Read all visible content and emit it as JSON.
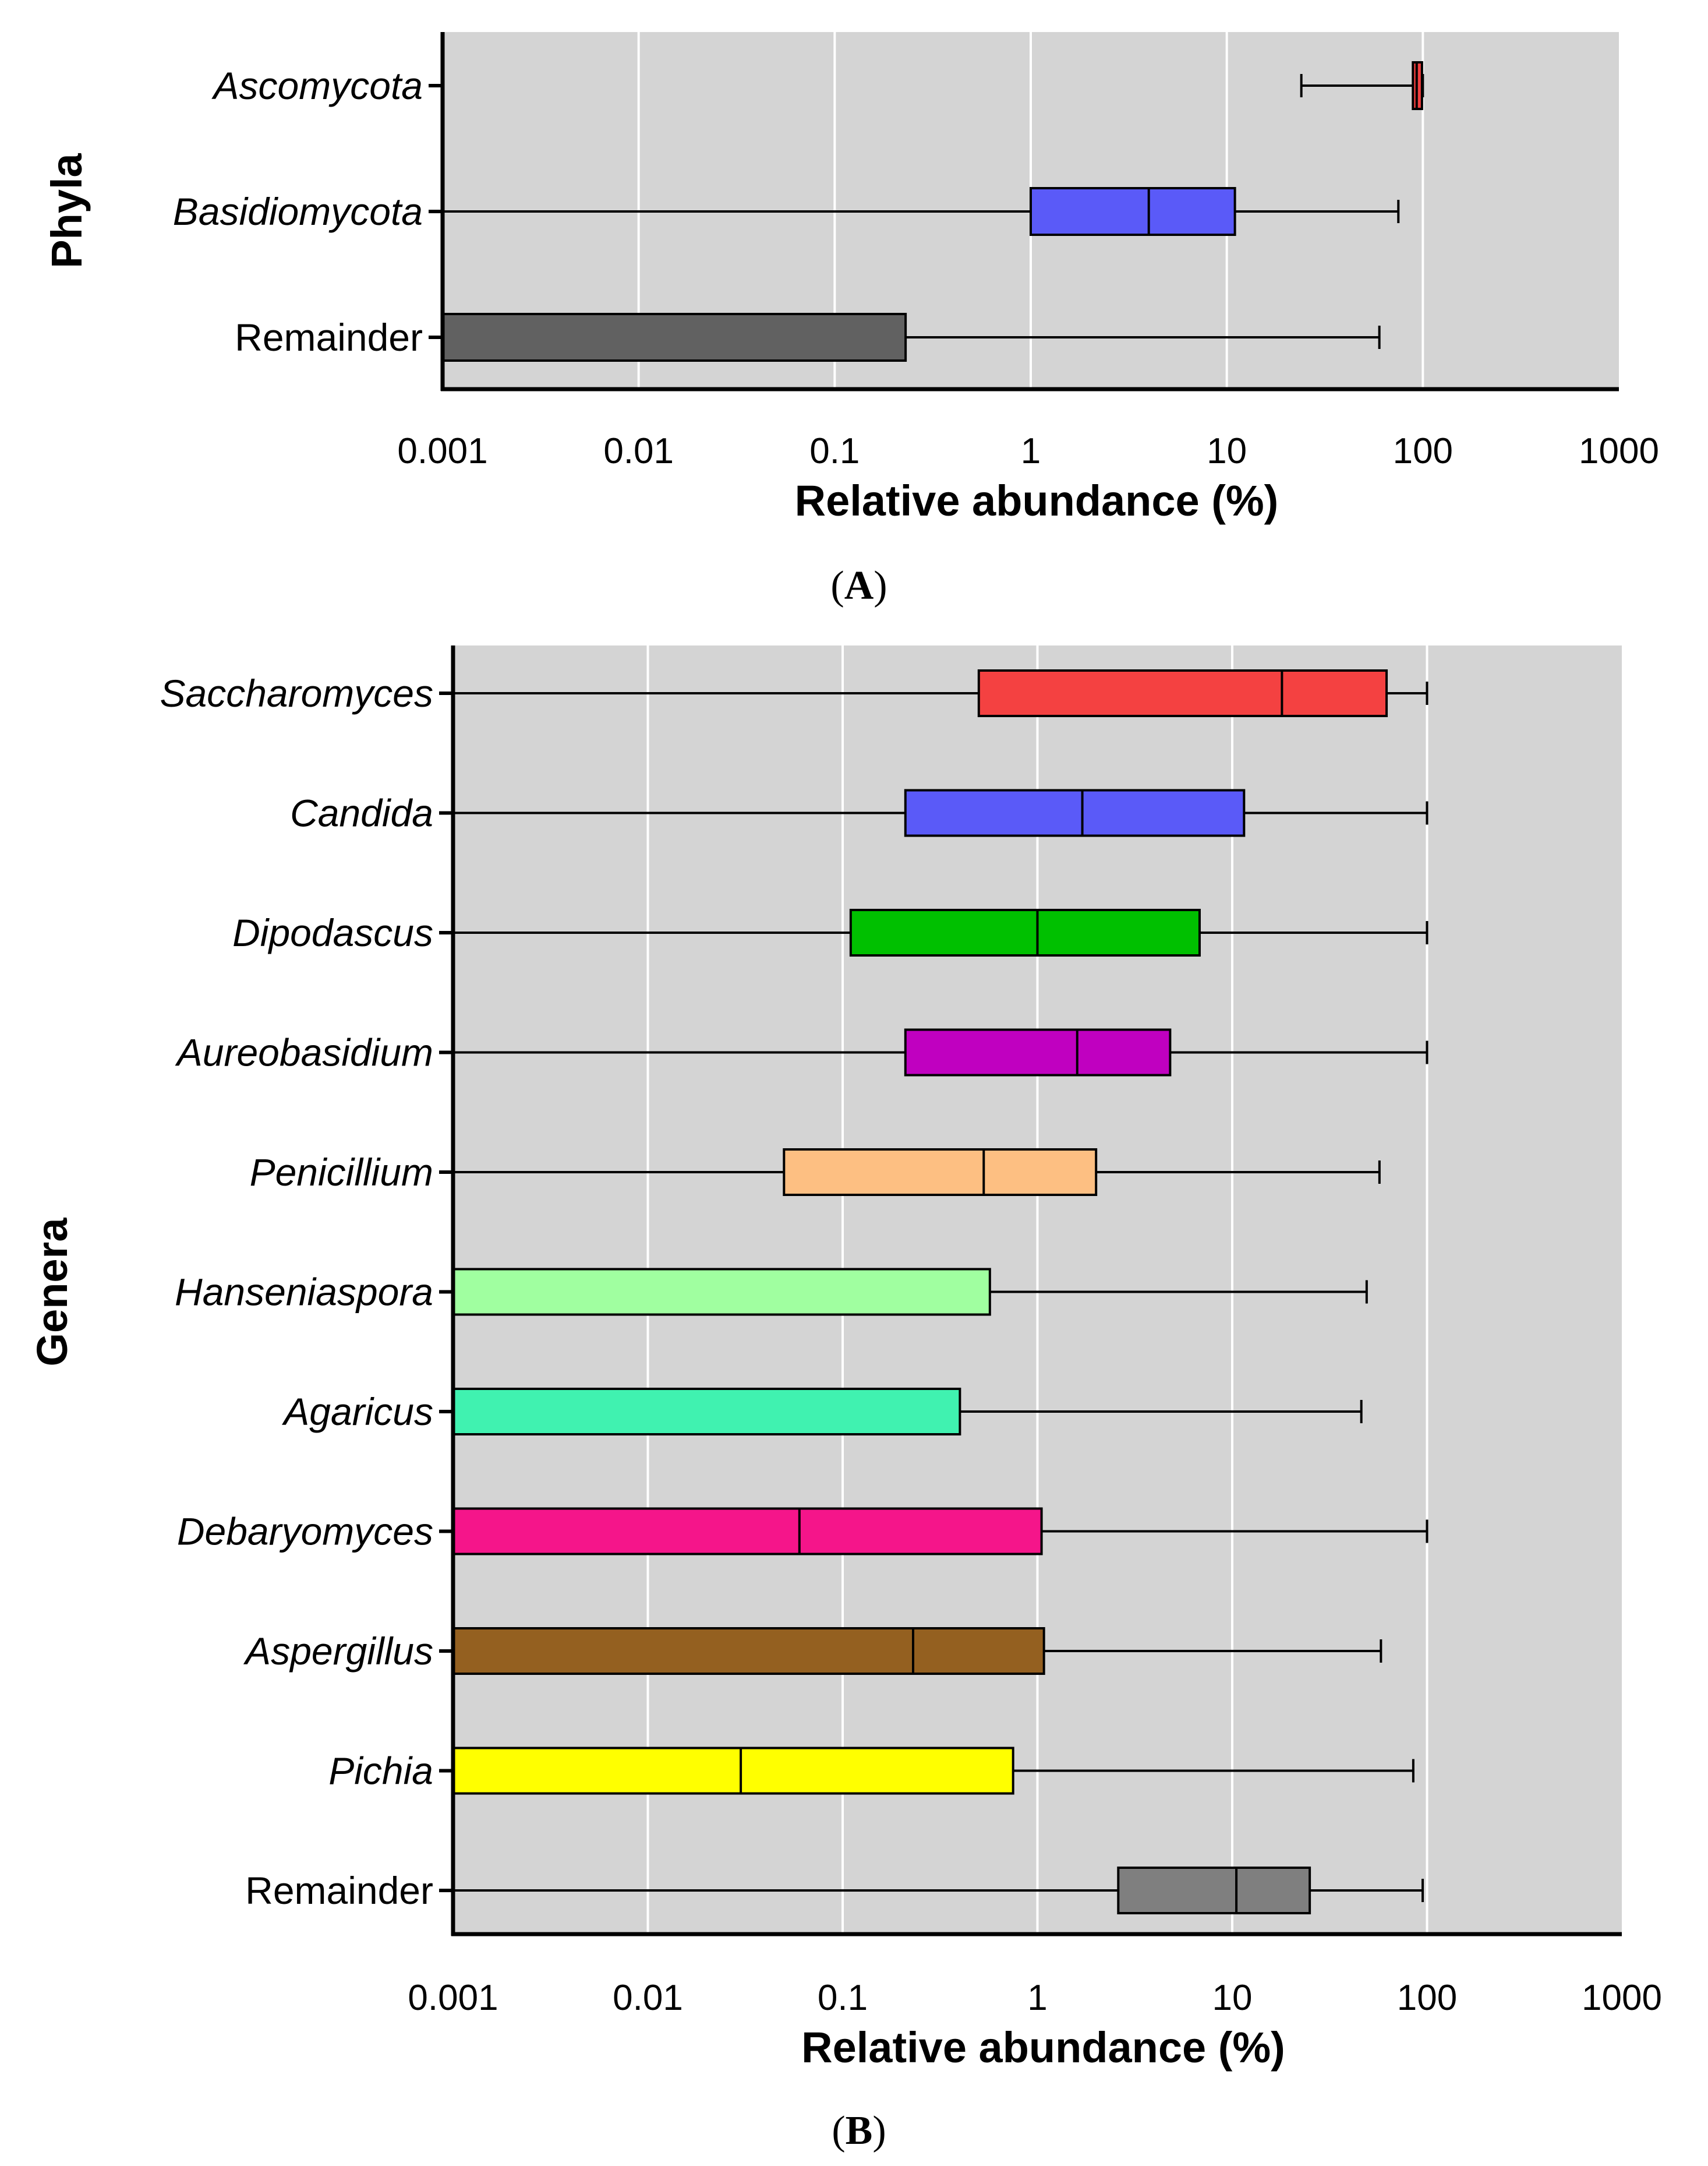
{
  "chart_data": [
    {
      "panel_label": "A",
      "type": "boxplot",
      "orientation": "horizontal",
      "xlabel": "Relative abundance (%)",
      "ylabel": "Phyla",
      "x_scale": "log",
      "xlim": [
        0.001,
        1000
      ],
      "x_ticks": [
        "0.001",
        "0.01",
        "0.1",
        "1",
        "10",
        "100",
        "1000"
      ],
      "grid": "vertical",
      "categories": [
        {
          "label": "Ascomycota",
          "italic": true,
          "color": "#f14040",
          "min": 24,
          "q1": 89,
          "median": 93,
          "q3": 99,
          "max": 100
        },
        {
          "label": "Basidiomycota",
          "italic": true,
          "color": "#5a5af8",
          "min": 0.001,
          "q1": 1.0,
          "median": 4.0,
          "q3": 11.0,
          "max": 75
        },
        {
          "label": "Remainder",
          "italic": false,
          "color": "#616161",
          "min": 0.001,
          "q1": 0.001,
          "median": 0.001,
          "q3": 0.23,
          "max": 60
        }
      ]
    },
    {
      "panel_label": "B",
      "type": "boxplot",
      "orientation": "horizontal",
      "xlabel": "Relative abundance (%)",
      "ylabel": "Genera",
      "x_scale": "log",
      "xlim": [
        0.001,
        1000
      ],
      "x_ticks": [
        "0.001",
        "0.01",
        "0.1",
        "1",
        "10",
        "100",
        "1000"
      ],
      "grid": "vertical",
      "categories": [
        {
          "label": "Saccharomyces",
          "italic": true,
          "color": "#f44141",
          "min": 0.001,
          "q1": 0.5,
          "median": 18,
          "q3": 62,
          "max": 100
        },
        {
          "label": "Candida",
          "italic": true,
          "color": "#5a5af8",
          "min": 0.001,
          "q1": 0.21,
          "median": 1.7,
          "q3": 11.5,
          "max": 100
        },
        {
          "label": "Dipodascus",
          "italic": true,
          "color": "#00c000",
          "min": 0.001,
          "q1": 0.11,
          "median": 1.0,
          "q3": 6.8,
          "max": 100
        },
        {
          "label": "Aureobasidium",
          "italic": true,
          "color": "#c000c0",
          "min": 0.001,
          "q1": 0.21,
          "median": 1.6,
          "q3": 4.8,
          "max": 100
        },
        {
          "label": "Penicillium",
          "italic": true,
          "color": "#fdbf82",
          "min": 0.001,
          "q1": 0.05,
          "median": 0.53,
          "q3": 2.0,
          "max": 57
        },
        {
          "label": "Hanseniaspora",
          "italic": true,
          "color": "#a0ffa0",
          "min": 0.001,
          "q1": 0.001,
          "median": 0.001,
          "q3": 0.57,
          "max": 49
        },
        {
          "label": "Agaricus",
          "italic": true,
          "color": "#40f2b0",
          "min": 0.001,
          "q1": 0.001,
          "median": 0.001,
          "q3": 0.4,
          "max": 46
        },
        {
          "label": "Debaryomyces",
          "italic": true,
          "color": "#f5158a",
          "min": 0.001,
          "q1": 0.001,
          "median": 0.06,
          "q3": 1.05,
          "max": 100
        },
        {
          "label": "Aspergillus",
          "italic": true,
          "color": "#946020",
          "min": 0.001,
          "q1": 0.001,
          "median": 0.23,
          "q3": 1.08,
          "max": 58
        },
        {
          "label": "Pichia",
          "italic": true,
          "color": "#ffff00",
          "min": 0.001,
          "q1": 0.001,
          "median": 0.03,
          "q3": 0.75,
          "max": 85
        },
        {
          "label": "Remainder",
          "italic": false,
          "color": "#7f7f7f",
          "min": 0.001,
          "q1": 2.6,
          "median": 10.5,
          "q3": 25,
          "max": 95
        }
      ]
    }
  ]
}
